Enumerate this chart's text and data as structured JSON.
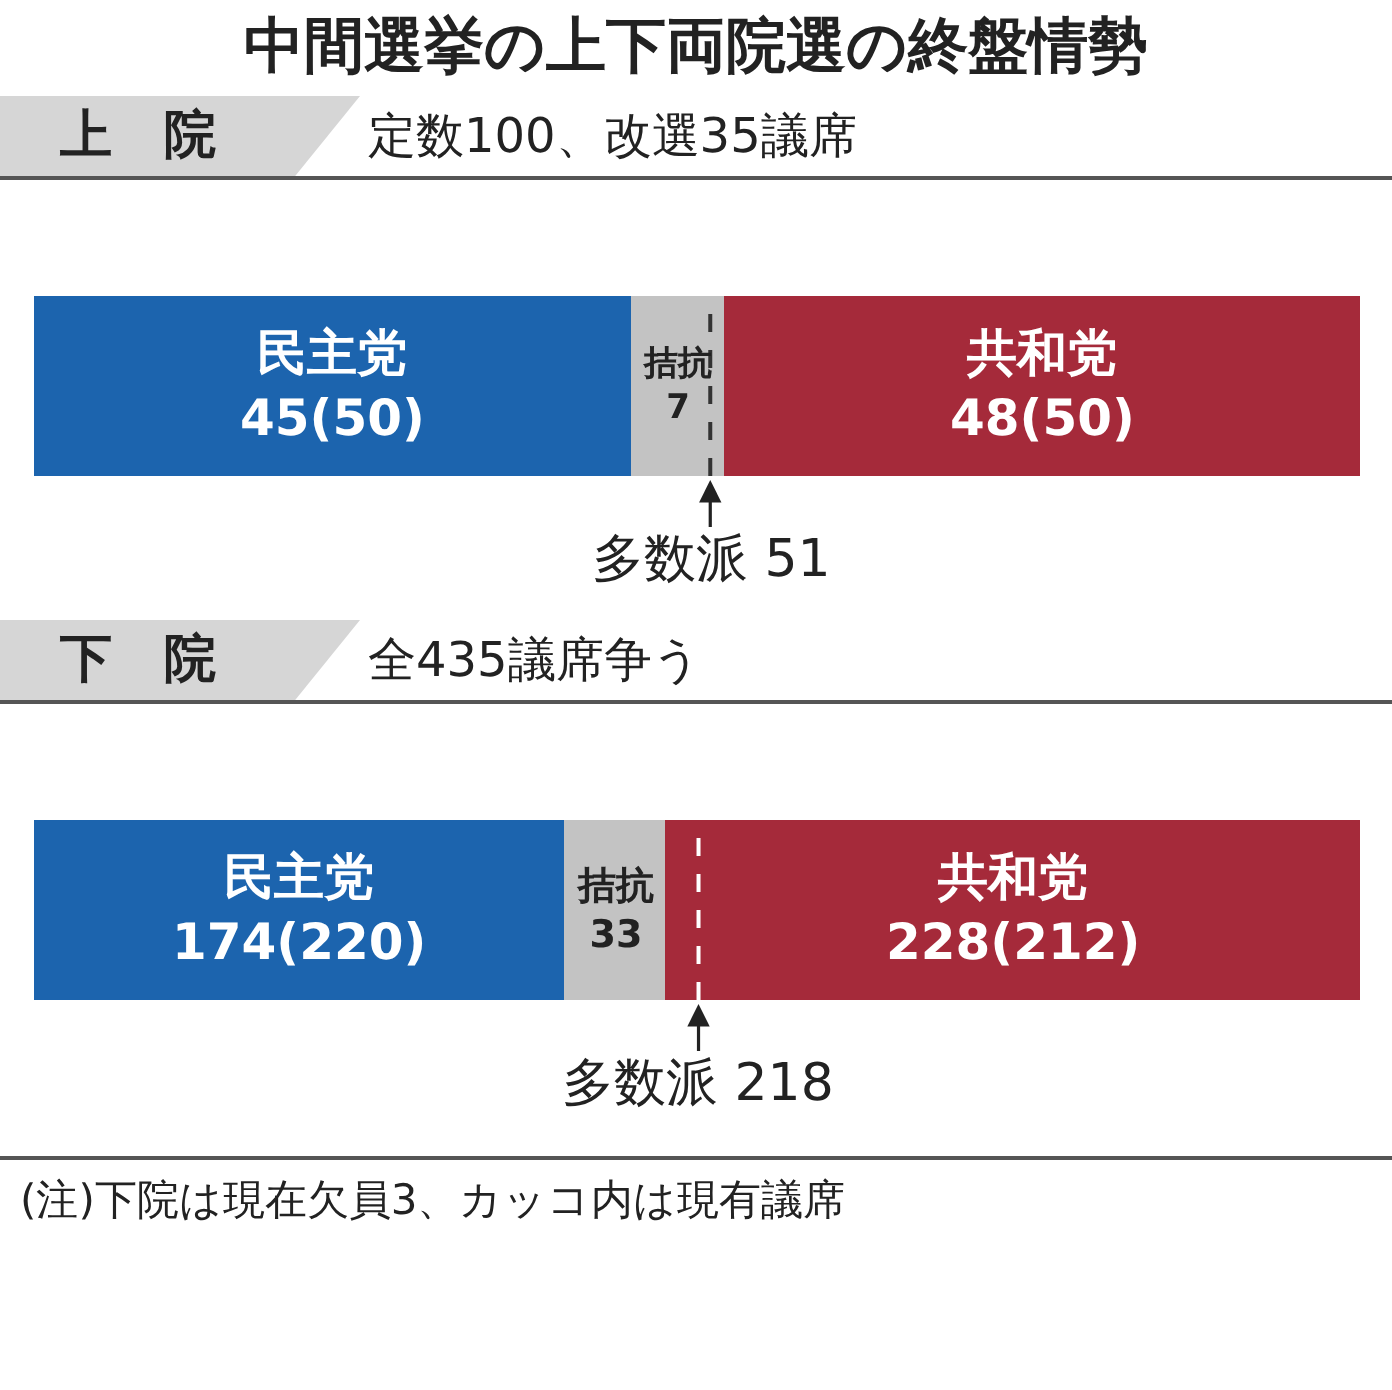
{
  "chart_data": [
    {
      "type": "bar",
      "orientation": "horizontal",
      "stacked": true,
      "title": "上　院",
      "subtitle": "定数100、改選35議席",
      "annotations": [
        "中間選挙の上下両院選の終盤情勢"
      ],
      "categories": [
        null
      ],
      "xlim": [
        0,
        100
      ],
      "series": [
        {
          "name": "民主党",
          "color": "#1c64ae",
          "values": [
            45
          ],
          "value_labels": [
            "45(50)"
          ]
        },
        {
          "name": "拮抗",
          "color": "#c3c3c3",
          "values": [
            7
          ],
          "value_labels": [
            "7"
          ]
        },
        {
          "name": "共和党",
          "color": "#a52a3a",
          "values": [
            48
          ],
          "value_labels": [
            "48(50)"
          ]
        }
      ],
      "ref_lines": [
        {
          "axis": "x",
          "value": 51,
          "label": "多数派 51",
          "color": "#333333",
          "line_style": "dashed"
        }
      ]
    },
    {
      "type": "bar",
      "orientation": "horizontal",
      "stacked": true,
      "title": "下　院",
      "subtitle": "全435議席争う",
      "annotations": [
        "(注)下院は現在欠員3、カッコ内は現有議席"
      ],
      "categories": [
        null
      ],
      "xlim": [
        0,
        435
      ],
      "series": [
        {
          "name": "民主党",
          "color": "#1c64ae",
          "values": [
            174
          ],
          "value_labels": [
            "174(220)"
          ]
        },
        {
          "name": "拮抗",
          "color": "#c3c3c3",
          "values": [
            33
          ],
          "value_labels": [
            "33"
          ]
        },
        {
          "name": "共和党",
          "color": "#a52a3a",
          "values": [
            228
          ],
          "value_labels": [
            "228(212)"
          ]
        }
      ],
      "ref_lines": [
        {
          "axis": "x",
          "value": 218,
          "label": "多数派 218",
          "color": "#ffffff",
          "line_style": "dashed"
        }
      ]
    }
  ]
}
